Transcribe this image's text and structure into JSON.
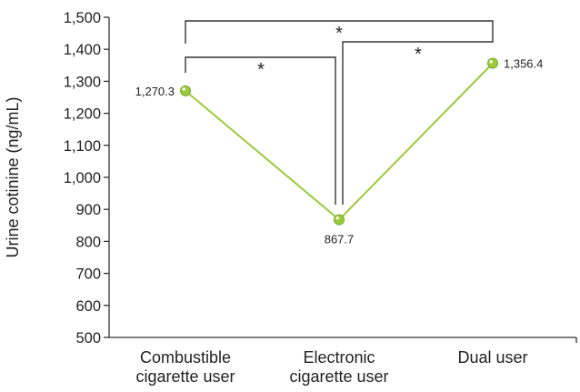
{
  "chart_data": {
    "type": "line",
    "title": "",
    "xlabel": "",
    "ylabel": "Urine cotinine (ng/mL)",
    "ylim": [
      500,
      1500
    ],
    "yticks": [
      500,
      600,
      700,
      800,
      900,
      1000,
      1100,
      1200,
      1300,
      1400,
      1500
    ],
    "ytick_labels": [
      "500",
      "600",
      "700",
      "800",
      "900",
      "1,000",
      "1,100",
      "1,200",
      "1,300",
      "1,400",
      "1,500"
    ],
    "categories": [
      [
        "Combustible",
        "cigarette user"
      ],
      [
        "Electronic",
        "cigarette user"
      ],
      [
        "Dual user"
      ]
    ],
    "series": [
      {
        "values": [
          1270.3,
          867.7,
          1356.4
        ],
        "value_labels": [
          "1,270.3",
          "867.7",
          "1,356.4"
        ],
        "color": "#9dc93b"
      }
    ],
    "significance": [
      {
        "from": 0,
        "to": 1,
        "label": "*"
      },
      {
        "from": 1,
        "to": 2,
        "label": "*"
      },
      {
        "from": 0,
        "to": 2,
        "label": "*"
      }
    ],
    "grid": false,
    "legend": "none"
  }
}
